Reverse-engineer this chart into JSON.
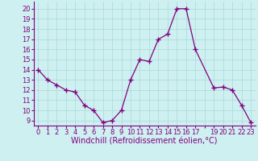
{
  "x": [
    0,
    1,
    2,
    3,
    4,
    5,
    6,
    7,
    8,
    9,
    10,
    11,
    12,
    13,
    14,
    15,
    16,
    17,
    19,
    20,
    21,
    22,
    23
  ],
  "y": [
    14.0,
    13.0,
    12.5,
    12.0,
    11.8,
    10.5,
    10.0,
    8.8,
    9.0,
    10.0,
    13.0,
    15.0,
    14.8,
    17.0,
    17.5,
    20.0,
    20.0,
    16.0,
    12.2,
    12.3,
    12.0,
    10.5,
    8.8
  ],
  "line_color": "#800080",
  "marker": "+",
  "marker_size": 4,
  "bg_color": "#cef0f0",
  "grid_color": "#aad8d8",
  "xlabel": "Windchill (Refroidissement éolien,°C)",
  "xtick_labels": [
    "0",
    "1",
    "2",
    "3",
    "4",
    "5",
    "6",
    "7",
    "8",
    "9",
    "10",
    "11",
    "12",
    "13",
    "14",
    "15",
    "16",
    "17",
    "",
    "19",
    "20",
    "21",
    "22",
    "23"
  ],
  "xtick_positions": [
    0,
    1,
    2,
    3,
    4,
    5,
    6,
    7,
    8,
    9,
    10,
    11,
    12,
    13,
    14,
    15,
    16,
    17,
    18,
    19,
    20,
    21,
    22,
    23
  ],
  "yticks": [
    9,
    10,
    11,
    12,
    13,
    14,
    15,
    16,
    17,
    18,
    19,
    20
  ],
  "ylim": [
    8.5,
    20.7
  ],
  "xlim": [
    -0.5,
    23.5
  ],
  "tick_label_size": 6.0,
  "xlabel_size": 7.0,
  "axis_label_color": "#800080",
  "linewidth": 0.9,
  "markeredgewidth": 1.0
}
